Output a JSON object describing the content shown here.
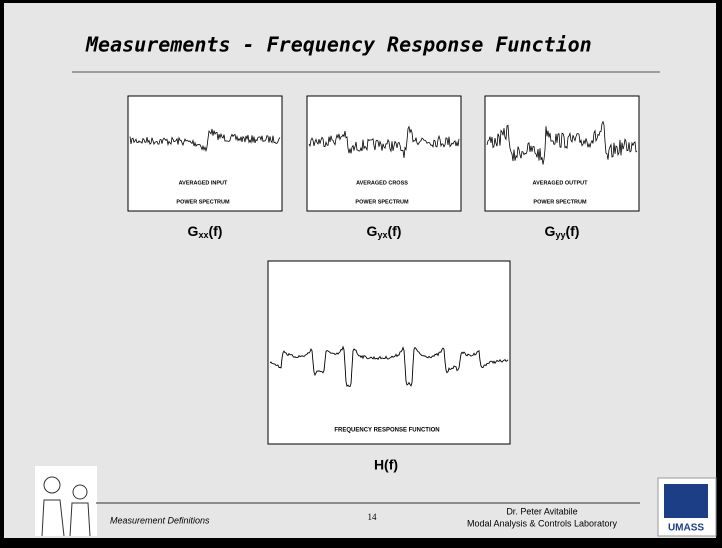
{
  "header": {
    "title": "Measurements - Frequency Response Function"
  },
  "panels": [
    {
      "label": [
        "AVERAGED INPUT",
        "POWER SPECTRUM"
      ],
      "caption": {
        "base": "G",
        "sub": "xx",
        "suffix": "(f)"
      }
    },
    {
      "label": [
        "AVERAGED CROSS",
        "POWER SPECTRUM"
      ],
      "caption": {
        "base": "G",
        "sub": "yx",
        "suffix": "(f)"
      }
    },
    {
      "label": [
        "AVERAGED OUTPUT",
        "POWER SPECTRUM"
      ],
      "caption": {
        "base": "G",
        "sub": "yy",
        "suffix": "(f)"
      }
    }
  ],
  "frf": {
    "label": "FREQUENCY RESPONSE FUNCTION",
    "caption": "H(f)"
  },
  "footer": {
    "left": "Measurement Definitions",
    "page": "14",
    "author": "Dr. Peter Avitabile",
    "lab": "Modal Analysis & Controls Laboratory",
    "logo": "UMASS"
  }
}
